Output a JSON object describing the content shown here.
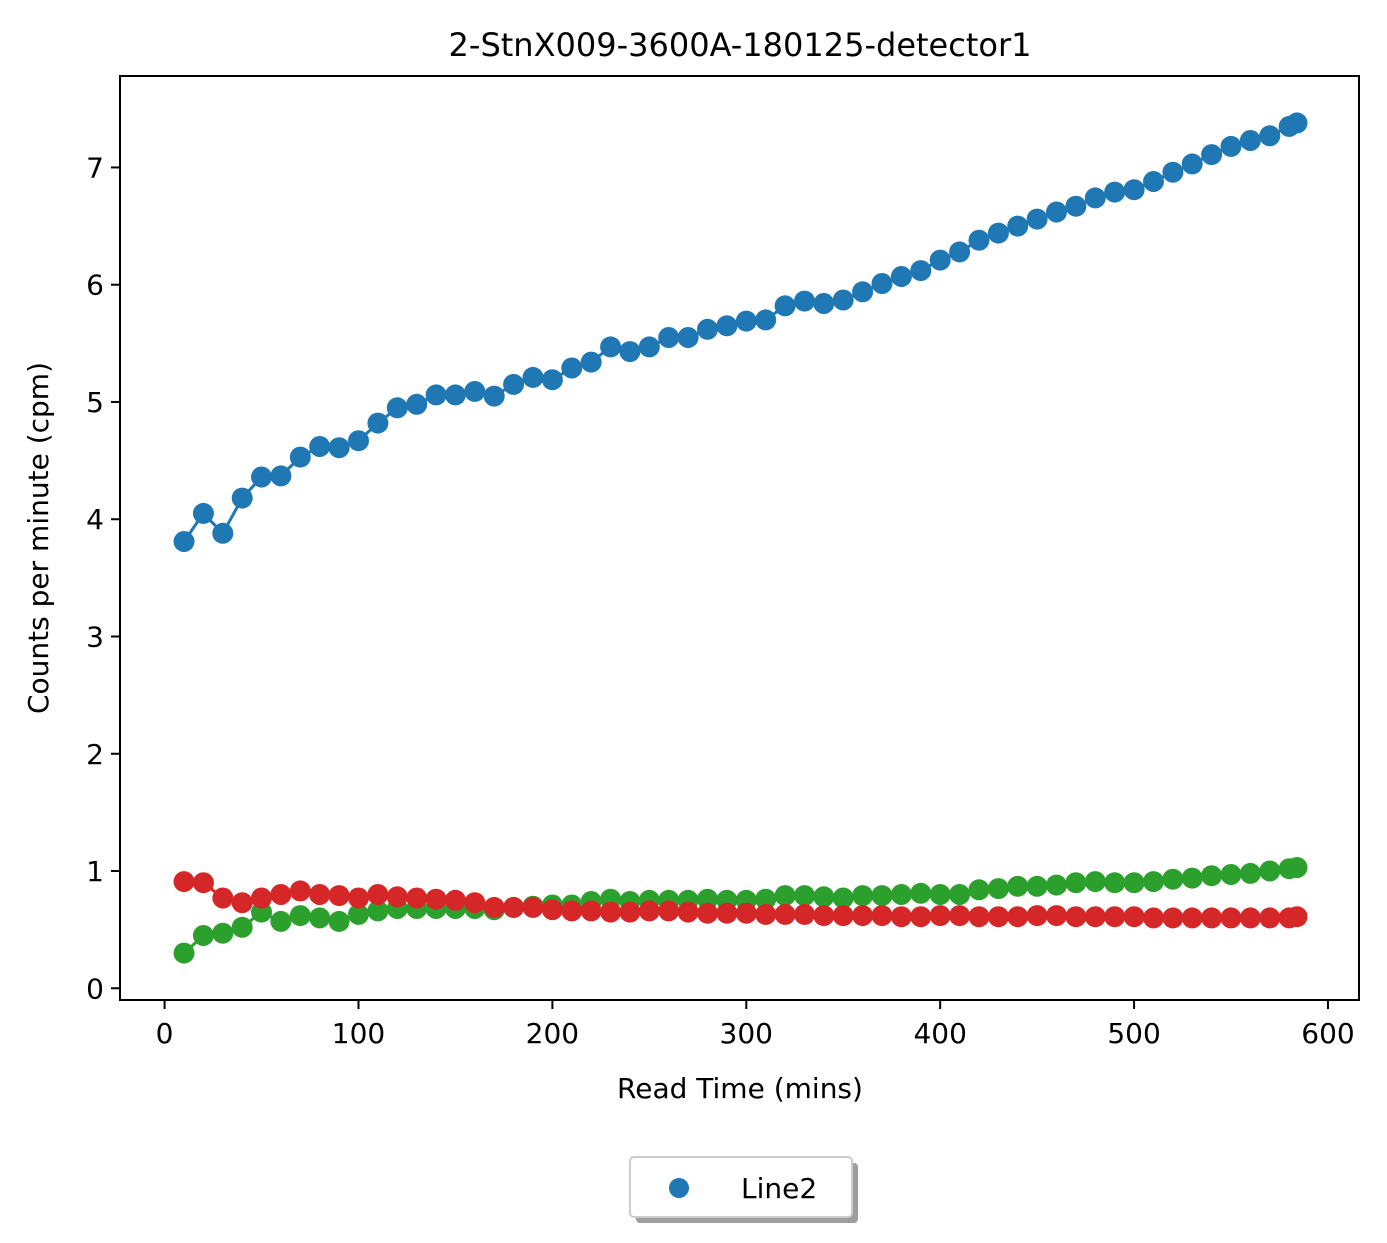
{
  "chart_data": {
    "type": "scatter",
    "title": "2-StnX009-3600A-180125-detector1",
    "xlabel": "Read Time (mins)",
    "ylabel": "Counts per minute (cpm)",
    "xlim": [
      -23,
      616
    ],
    "ylim": [
      -0.1,
      7.78
    ],
    "xticks": [
      0,
      100,
      200,
      300,
      400,
      500,
      600
    ],
    "yticks": [
      0,
      1,
      2,
      3,
      4,
      5,
      6,
      7
    ],
    "grid": false,
    "legend": {
      "placement": "bottom-center",
      "entries": [
        "Line2"
      ]
    },
    "series": [
      {
        "name": "Line2",
        "color": "#1f77b4",
        "x": [
          10,
          20,
          30,
          40,
          50,
          60,
          70,
          80,
          90,
          100,
          110,
          120,
          130,
          140,
          150,
          160,
          170,
          180,
          190,
          200,
          210,
          220,
          230,
          240,
          250,
          260,
          270,
          280,
          290,
          300,
          310,
          320,
          330,
          340,
          350,
          360,
          370,
          380,
          390,
          400,
          410,
          420,
          430,
          440,
          450,
          460,
          470,
          480,
          490,
          500,
          510,
          520,
          530,
          540,
          550,
          560,
          570,
          580,
          584
        ],
        "y": [
          3.81,
          4.05,
          3.88,
          4.18,
          4.36,
          4.37,
          4.53,
          4.62,
          4.61,
          4.67,
          4.82,
          4.95,
          4.98,
          5.06,
          5.06,
          5.09,
          5.05,
          5.15,
          5.21,
          5.19,
          5.29,
          5.34,
          5.47,
          5.43,
          5.47,
          5.55,
          5.55,
          5.62,
          5.65,
          5.69,
          5.7,
          5.82,
          5.86,
          5.84,
          5.87,
          5.94,
          6.01,
          6.07,
          6.12,
          6.21,
          6.28,
          6.38,
          6.44,
          6.5,
          6.56,
          6.62,
          6.67,
          6.74,
          6.79,
          6.81,
          6.88,
          6.96,
          7.03,
          7.11,
          7.18,
          7.23,
          7.27,
          7.35,
          7.38
        ]
      },
      {
        "color": "#2ca02c",
        "x": [
          10,
          20,
          30,
          40,
          50,
          60,
          70,
          80,
          90,
          100,
          110,
          120,
          130,
          140,
          150,
          160,
          170,
          180,
          190,
          200,
          210,
          220,
          230,
          240,
          250,
          260,
          270,
          280,
          290,
          300,
          310,
          320,
          330,
          340,
          350,
          360,
          370,
          380,
          390,
          400,
          410,
          420,
          430,
          440,
          450,
          460,
          470,
          480,
          490,
          500,
          510,
          520,
          530,
          540,
          550,
          560,
          570,
          580,
          584
        ],
        "y": [
          0.3,
          0.45,
          0.47,
          0.52,
          0.65,
          0.57,
          0.62,
          0.6,
          0.57,
          0.63,
          0.66,
          0.68,
          0.68,
          0.68,
          0.68,
          0.68,
          0.67,
          0.69,
          0.7,
          0.71,
          0.71,
          0.74,
          0.76,
          0.74,
          0.75,
          0.75,
          0.75,
          0.76,
          0.75,
          0.75,
          0.76,
          0.79,
          0.79,
          0.78,
          0.77,
          0.79,
          0.79,
          0.8,
          0.81,
          0.8,
          0.8,
          0.84,
          0.85,
          0.87,
          0.87,
          0.88,
          0.9,
          0.91,
          0.9,
          0.9,
          0.91,
          0.93,
          0.94,
          0.96,
          0.97,
          0.98,
          1.0,
          1.02,
          1.03
        ]
      },
      {
        "color": "#d62728",
        "x": [
          10,
          20,
          30,
          40,
          50,
          60,
          70,
          80,
          90,
          100,
          110,
          120,
          130,
          140,
          150,
          160,
          170,
          180,
          190,
          200,
          210,
          220,
          230,
          240,
          250,
          260,
          270,
          280,
          290,
          300,
          310,
          320,
          330,
          340,
          350,
          360,
          370,
          380,
          390,
          400,
          410,
          420,
          430,
          440,
          450,
          460,
          470,
          480,
          490,
          500,
          510,
          520,
          530,
          540,
          550,
          560,
          570,
          580,
          584
        ],
        "y": [
          0.91,
          0.9,
          0.77,
          0.73,
          0.77,
          0.8,
          0.83,
          0.8,
          0.79,
          0.77,
          0.8,
          0.78,
          0.77,
          0.76,
          0.75,
          0.73,
          0.69,
          0.69,
          0.69,
          0.67,
          0.66,
          0.66,
          0.65,
          0.65,
          0.66,
          0.66,
          0.65,
          0.64,
          0.64,
          0.64,
          0.63,
          0.63,
          0.63,
          0.62,
          0.62,
          0.62,
          0.62,
          0.61,
          0.61,
          0.62,
          0.62,
          0.61,
          0.61,
          0.61,
          0.62,
          0.62,
          0.61,
          0.61,
          0.61,
          0.61,
          0.6,
          0.6,
          0.6,
          0.6,
          0.6,
          0.6,
          0.6,
          0.6,
          0.61
        ]
      }
    ]
  }
}
